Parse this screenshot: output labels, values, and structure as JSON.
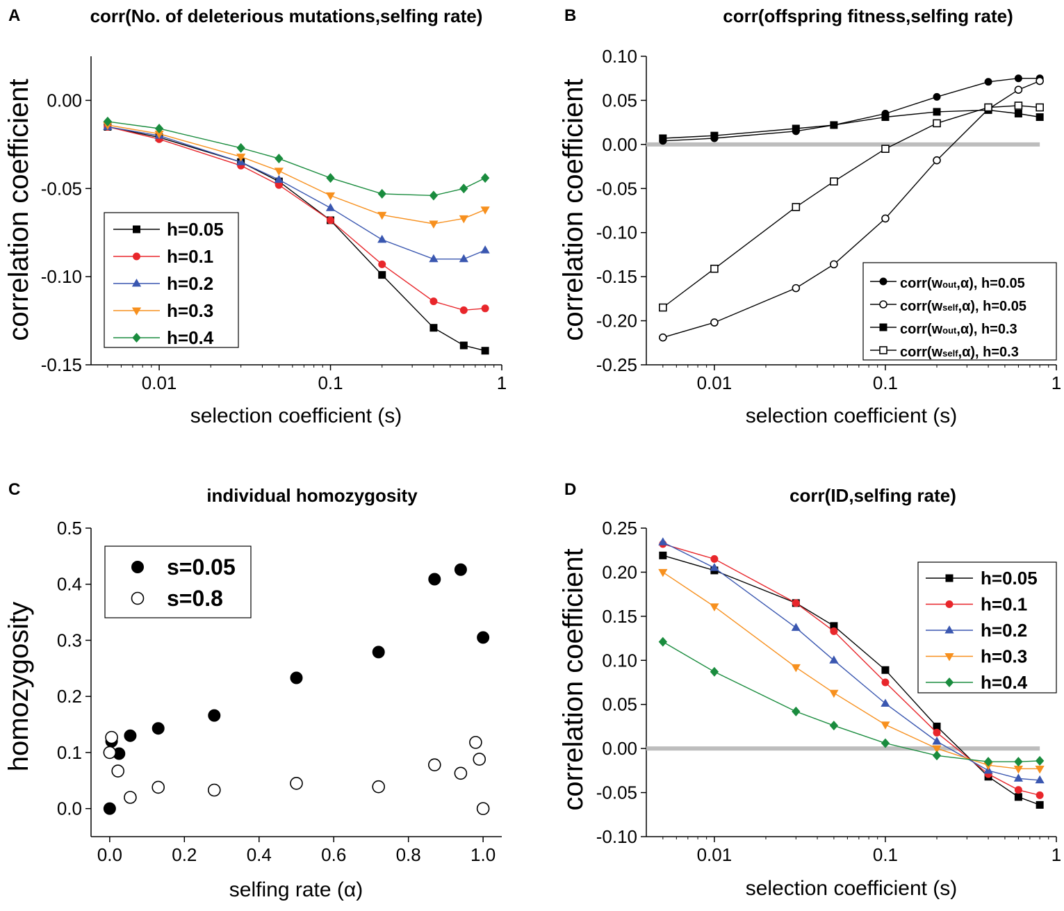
{
  "chart_data": [
    {
      "panel": "A",
      "type": "line",
      "title": "corr(No. of deleterious mutations,selfing rate)",
      "xlabel": "selection coefficient (s)",
      "ylabel": "correlation coefficient",
      "xscale": "log",
      "xlim": [
        0.004,
        1
      ],
      "ylim": [
        -0.15,
        0.025
      ],
      "xticks": [
        0.01,
        0.1,
        1
      ],
      "xtick_labels": [
        "0.01",
        "0.1",
        "1"
      ],
      "yticks": [
        -0.15,
        -0.1,
        -0.05,
        0.0
      ],
      "ytick_labels": [
        "-0.15",
        "-0.10",
        "-0.05",
        "0.00"
      ],
      "legend": "left-center",
      "x": [
        0.005,
        0.01,
        0.03,
        0.05,
        0.1,
        0.2,
        0.4,
        0.6,
        0.8
      ],
      "series": [
        {
          "name": "h=0.05",
          "color": "#000000",
          "marker": "square",
          "values": [
            -0.015,
            -0.021,
            -0.035,
            -0.046,
            -0.068,
            -0.099,
            -0.129,
            -0.139,
            -0.142
          ]
        },
        {
          "name": "h=0.1",
          "color": "#e8262b",
          "marker": "circle",
          "values": [
            -0.015,
            -0.022,
            -0.037,
            -0.048,
            -0.068,
            -0.093,
            -0.114,
            -0.119,
            -0.118
          ]
        },
        {
          "name": "h=0.2",
          "color": "#3a57b0",
          "marker": "triangle-up",
          "values": [
            -0.015,
            -0.02,
            -0.035,
            -0.045,
            -0.061,
            -0.079,
            -0.09,
            -0.09,
            -0.085
          ]
        },
        {
          "name": "h=0.3",
          "color": "#f7901e",
          "marker": "triangle-down",
          "values": [
            -0.014,
            -0.019,
            -0.032,
            -0.04,
            -0.054,
            -0.065,
            -0.07,
            -0.067,
            -0.062
          ]
        },
        {
          "name": "h=0.4",
          "color": "#1a8c3e",
          "marker": "diamond",
          "values": [
            -0.012,
            -0.016,
            -0.027,
            -0.033,
            -0.044,
            -0.053,
            -0.054,
            -0.05,
            -0.044
          ]
        }
      ]
    },
    {
      "panel": "B",
      "type": "line",
      "title": "corr(offspring fitness,selfing rate)",
      "xlabel": "selection coefficient (s)",
      "ylabel": "correlation coefficient",
      "xscale": "log",
      "xlim": [
        0.004,
        1
      ],
      "ylim": [
        -0.25,
        0.1
      ],
      "xticks": [
        0.01,
        0.1,
        1
      ],
      "xtick_labels": [
        "0.01",
        "0.1",
        "1"
      ],
      "yticks": [
        -0.25,
        -0.2,
        -0.15,
        -0.1,
        -0.05,
        0.0,
        0.05,
        0.1
      ],
      "ytick_labels": [
        "-0.25",
        "-0.20",
        "-0.15",
        "-0.10",
        "-0.05",
        "0.00",
        "0.05",
        "0.10"
      ],
      "reference_line": 0,
      "legend": "bottom-right",
      "x": [
        0.005,
        0.01,
        0.03,
        0.05,
        0.1,
        0.2,
        0.4,
        0.6,
        0.8
      ],
      "series": [
        {
          "name": "corr(w",
          "sub": "out",
          "tail": ",α), h=0.05",
          "color": "#000000",
          "marker": "circle-filled",
          "values": [
            0.004,
            0.007,
            0.015,
            0.022,
            0.035,
            0.054,
            0.071,
            0.075,
            0.075
          ]
        },
        {
          "name": "corr(w",
          "sub": "self",
          "tail": ",α), h=0.05",
          "color": "#000000",
          "marker": "circle-open",
          "values": [
            -0.219,
            -0.202,
            -0.163,
            -0.136,
            -0.084,
            -0.018,
            0.04,
            0.062,
            0.072
          ]
        },
        {
          "name": "corr(w",
          "sub": "out",
          "tail": ",α), h=0.3",
          "color": "#000000",
          "marker": "square-filled",
          "values": [
            0.007,
            0.01,
            0.018,
            0.022,
            0.031,
            0.037,
            0.039,
            0.035,
            0.031
          ]
        },
        {
          "name": "corr(w",
          "sub": "self",
          "tail": ",α), h=0.3",
          "color": "#000000",
          "marker": "square-open",
          "values": [
            -0.185,
            -0.141,
            -0.071,
            -0.042,
            -0.005,
            0.024,
            0.042,
            0.044,
            0.042
          ]
        }
      ]
    },
    {
      "panel": "C",
      "type": "scatter",
      "title": "individual homozygosity",
      "xlabel": "selfing rate (α)",
      "ylabel": "homozygosity",
      "xlim": [
        -0.05,
        1.05
      ],
      "ylim": [
        -0.05,
        0.5
      ],
      "xticks": [
        0,
        0.2,
        0.4,
        0.6,
        0.8,
        1.0
      ],
      "xtick_labels": [
        "0.0",
        "0.2",
        "0.4",
        "0.6",
        "0.8",
        "1.0"
      ],
      "yticks": [
        0,
        0.1,
        0.2,
        0.3,
        0.4,
        0.5
      ],
      "ytick_labels": [
        "0.0",
        "0.1",
        "0.2",
        "0.3",
        "0.4",
        "0.5"
      ],
      "legend": "top-left",
      "series": [
        {
          "name": "s=0.05",
          "marker": "circle-filled",
          "x": [
            0.0,
            0.005,
            0.025,
            0.055,
            0.13,
            0.28,
            0.5,
            0.72,
            0.87,
            0.94,
            1.0
          ],
          "y": [
            0.0,
            0.12,
            0.098,
            0.13,
            0.143,
            0.166,
            0.233,
            0.279,
            0.409,
            0.426,
            0.305
          ]
        },
        {
          "name": "s=0.8",
          "marker": "circle-open",
          "x": [
            0.0,
            0.005,
            0.022,
            0.055,
            0.13,
            0.28,
            0.5,
            0.72,
            0.87,
            0.94,
            0.98,
            0.99,
            1.0
          ],
          "y": [
            0.1,
            0.127,
            0.067,
            0.02,
            0.038,
            0.033,
            0.045,
            0.039,
            0.078,
            0.063,
            0.118,
            0.088,
            0.0
          ]
        }
      ]
    },
    {
      "panel": "D",
      "type": "line",
      "title": "corr(ID,selfing rate)",
      "xlabel": "selection coefficient (s)",
      "ylabel": "correlation coefficient",
      "xscale": "log",
      "xlim": [
        0.004,
        1
      ],
      "ylim": [
        -0.1,
        0.25
      ],
      "xticks": [
        0.01,
        0.1,
        1
      ],
      "xtick_labels": [
        "0.01",
        "0.1",
        "1"
      ],
      "yticks": [
        -0.1,
        -0.05,
        0.0,
        0.05,
        0.1,
        0.15,
        0.2,
        0.25
      ],
      "ytick_labels": [
        "-0.10",
        "-0.05",
        "0.00",
        "0.05",
        "0.10",
        "0.15",
        "0.20",
        "0.25"
      ],
      "reference_line": 0,
      "legend": "top-right",
      "x": [
        0.005,
        0.01,
        0.03,
        0.05,
        0.1,
        0.2,
        0.4,
        0.6,
        0.8
      ],
      "series": [
        {
          "name": "h=0.05",
          "color": "#000000",
          "marker": "square",
          "values": [
            0.219,
            0.202,
            0.165,
            0.139,
            0.089,
            0.025,
            -0.032,
            -0.055,
            -0.064
          ]
        },
        {
          "name": "h=0.1",
          "color": "#e8262b",
          "marker": "circle",
          "values": [
            0.232,
            0.215,
            0.165,
            0.133,
            0.075,
            0.018,
            -0.029,
            -0.047,
            -0.053
          ]
        },
        {
          "name": "h=0.2",
          "color": "#3a57b0",
          "marker": "triangle-up",
          "values": [
            0.234,
            0.205,
            0.137,
            0.1,
            0.051,
            0.008,
            -0.025,
            -0.034,
            -0.036
          ]
        },
        {
          "name": "h=0.3",
          "color": "#f7901e",
          "marker": "triangle-down",
          "values": [
            0.2,
            0.161,
            0.092,
            0.063,
            0.027,
            0.0,
            -0.019,
            -0.023,
            -0.023
          ]
        },
        {
          "name": "h=0.4",
          "color": "#1a8c3e",
          "marker": "diamond",
          "values": [
            0.121,
            0.087,
            0.042,
            0.026,
            0.006,
            -0.008,
            -0.015,
            -0.015,
            -0.014
          ]
        }
      ]
    }
  ],
  "panel_letters": [
    "A",
    "B",
    "C",
    "D"
  ]
}
